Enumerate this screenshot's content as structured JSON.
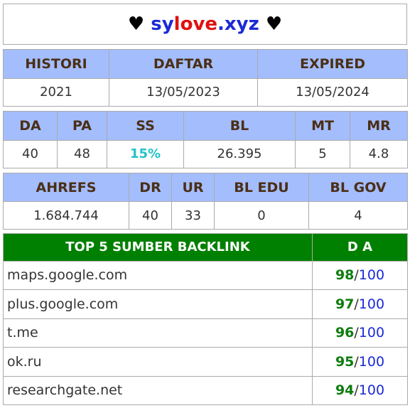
{
  "title": {
    "heart_left": "♥",
    "sy": "sy",
    "love": "love",
    "tld": ".xyz",
    "heart_right": "♥"
  },
  "domain_info": {
    "headers": [
      "HISTORI",
      "DAFTAR",
      "EXPIRED"
    ],
    "values": [
      "2021",
      "13/05/2023",
      "13/05/2024"
    ]
  },
  "moz_metrics": {
    "headers": [
      "DA",
      "PA",
      "SS",
      "BL",
      "MT",
      "MR"
    ],
    "values": [
      "40",
      "48",
      "15%",
      "26.395",
      "5",
      "4.8"
    ]
  },
  "ahrefs_metrics": {
    "headers": [
      "AHREFS",
      "DR",
      "UR",
      "BL EDU",
      "BL GOV"
    ],
    "values": [
      "1.684.744",
      "40",
      "33",
      "0",
      "4"
    ]
  },
  "backlinks": {
    "headers": [
      "TOP 5 SUMBER BACKLINK",
      "D A"
    ],
    "rows": [
      {
        "source": "maps.google.com",
        "da": "98",
        "max": "100"
      },
      {
        "source": "plus.google.com",
        "da": "97",
        "max": "100"
      },
      {
        "source": "t.me",
        "da": "96",
        "max": "100"
      },
      {
        "source": "ok.ru",
        "da": "95",
        "max": "100"
      },
      {
        "source": "researchgate.net",
        "da": "94",
        "max": "100"
      }
    ],
    "separator": "/"
  },
  "colors": {
    "header_bg": "#a4bdfd",
    "backlink_header_bg": "#008000",
    "da_green": "#0e7d0e",
    "accent_blue": "#1b2ad6",
    "ss_cyan": "#22c3c8"
  }
}
